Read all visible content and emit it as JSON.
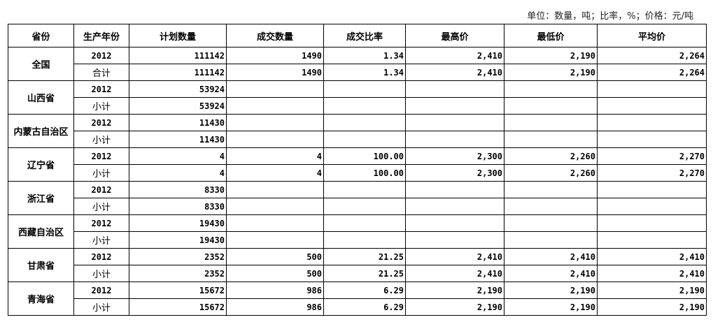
{
  "unit_note": "单位：数量，吨；比率，%；价格：元/吨",
  "headers": [
    "省份",
    "生产年份",
    "计划数量",
    "成交数量",
    "成交比率",
    "最高价",
    "最低价",
    "平均价"
  ],
  "groups": [
    {
      "province": "全国",
      "rows": [
        [
          "2012",
          "111142",
          "1490",
          "1.34",
          "2,410",
          "2,190",
          "2,264"
        ],
        [
          "合计",
          "111142",
          "1490",
          "1.34",
          "2,410",
          "2,190",
          "2,264"
        ]
      ]
    },
    {
      "province": "山西省",
      "rows": [
        [
          "2012",
          "53924",
          "",
          "",
          "",
          "",
          ""
        ],
        [
          "小计",
          "53924",
          "",
          "",
          "",
          "",
          ""
        ]
      ]
    },
    {
      "province": "内蒙古自治区",
      "rows": [
        [
          "2012",
          "11430",
          "",
          "",
          "",
          "",
          ""
        ],
        [
          "小计",
          "11430",
          "",
          "",
          "",
          "",
          ""
        ]
      ]
    },
    {
      "province": "辽宁省",
      "rows": [
        [
          "2012",
          "4",
          "4",
          "100.00",
          "2,300",
          "2,260",
          "2,270"
        ],
        [
          "小计",
          "4",
          "4",
          "100.00",
          "2,300",
          "2,260",
          "2,270"
        ]
      ]
    },
    {
      "province": "浙江省",
      "rows": [
        [
          "2012",
          "8330",
          "",
          "",
          "",
          "",
          ""
        ],
        [
          "小计",
          "8330",
          "",
          "",
          "",
          "",
          ""
        ]
      ]
    },
    {
      "province": "西藏自治区",
      "rows": [
        [
          "2012",
          "19430",
          "",
          "",
          "",
          "",
          ""
        ],
        [
          "小计",
          "19430",
          "",
          "",
          "",
          "",
          ""
        ]
      ]
    },
    {
      "province": "甘肃省",
      "rows": [
        [
          "2012",
          "2352",
          "500",
          "21.25",
          "2,410",
          "2,410",
          "2,410"
        ],
        [
          "小计",
          "2352",
          "500",
          "21.25",
          "2,410",
          "2,410",
          "2,410"
        ]
      ]
    },
    {
      "province": "青海省",
      "rows": [
        [
          "2012",
          "15672",
          "986",
          "6.29",
          "2,190",
          "2,190",
          "2,190"
        ],
        [
          "小计",
          "15672",
          "986",
          "6.29",
          "2,190",
          "2,190",
          "2,190"
        ]
      ]
    }
  ]
}
